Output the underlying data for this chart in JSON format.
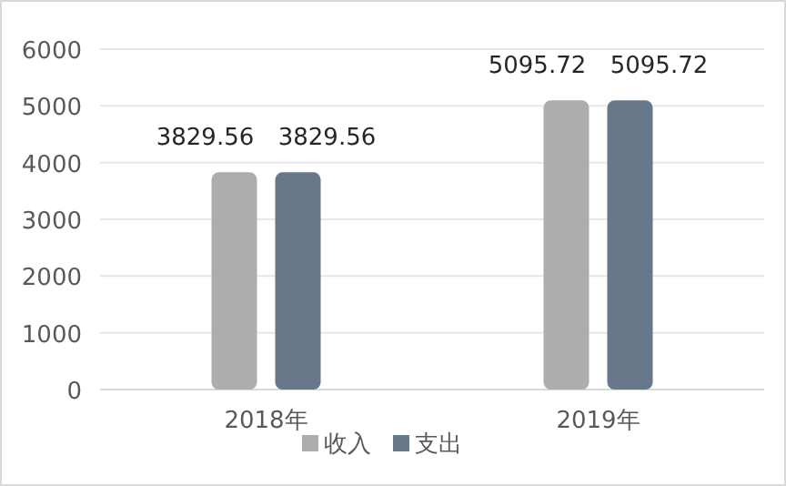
{
  "chart_data": {
    "type": "bar",
    "categories": [
      "2018年",
      "2019年"
    ],
    "series": [
      {
        "name": "收入",
        "color": "#adadad",
        "values": [
          3829.56,
          5095.72
        ]
      },
      {
        "name": "支出",
        "color": "#67788a",
        "values": [
          3829.56,
          5095.72
        ]
      }
    ],
    "ylim": [
      0,
      6000
    ],
    "yticks": [
      0,
      1000,
      2000,
      3000,
      4000,
      5000,
      6000
    ],
    "grid": "y",
    "legend": "bottom",
    "data_labels": true
  }
}
